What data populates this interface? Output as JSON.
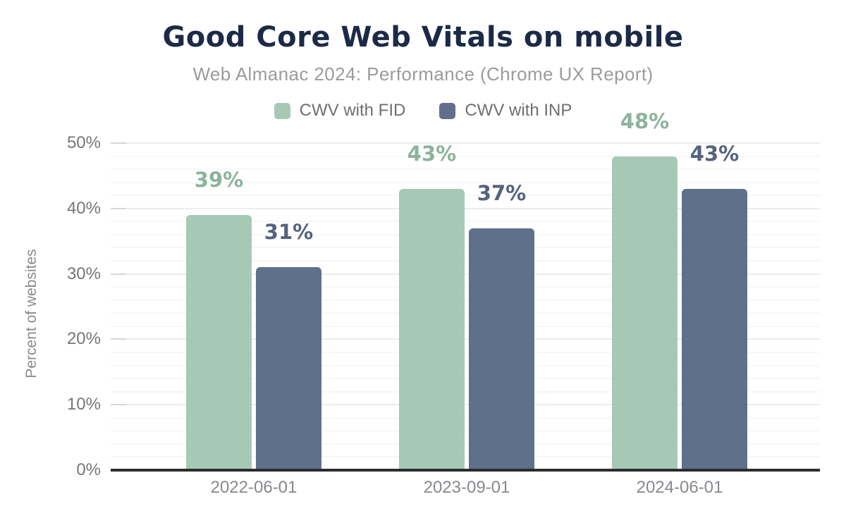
{
  "chart_data": {
    "type": "bar",
    "title": "Good Core Web Vitals on mobile",
    "subtitle": "Web Almanac 2024: Performance (Chrome UX Report)",
    "categories": [
      "2022-06-01",
      "2023-09-01",
      "2024-06-01"
    ],
    "series": [
      {
        "name": "CWV with FID",
        "values": [
          39,
          43,
          48
        ],
        "color": "#a6c9b6",
        "label_color": "#8cb39c"
      },
      {
        "name": "CWV with INP",
        "values": [
          31,
          37,
          43
        ],
        "color": "#5f708b",
        "label_color": "#54637e"
      }
    ],
    "xlabel": "",
    "ylabel": "Percent of websites",
    "ylim": [
      0,
      50
    ],
    "ytick_step": 10,
    "ytick_minor_step": 2,
    "ytick_suffix": "%",
    "data_label_suffix": "%",
    "ytick_labels": [
      "0%",
      "10%",
      "20%",
      "30%",
      "40%",
      "50%"
    ],
    "grid": true,
    "legend_position": "top",
    "data_labels": true
  },
  "theme": {
    "title_color": "#1c2a47",
    "subtitle_color": "#9b9b9b",
    "legend_text_color": "#6f6f6f",
    "ytick_color": "#767676",
    "xtick_color": "#85898e",
    "ylabel_color": "#8a8a8a",
    "axis_line_color": "#2d2d2d",
    "grid_major_color": "#ececec",
    "grid_minor_color": "#f7f7f7",
    "grid_tick_color": "#d6d6d6",
    "background": "#ffffff"
  }
}
